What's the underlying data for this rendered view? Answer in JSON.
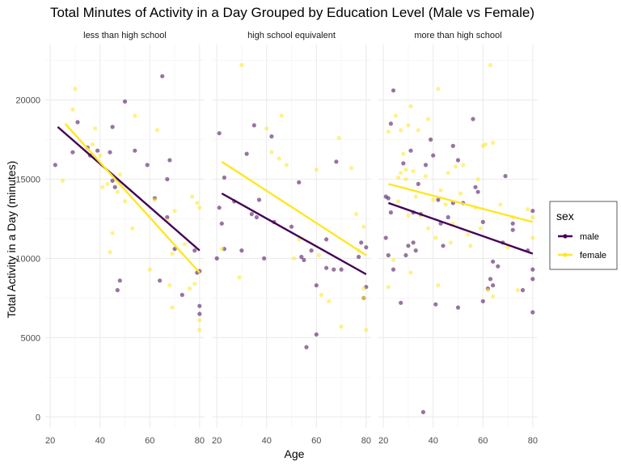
{
  "chart_data": {
    "type": "scatter",
    "title": "Total Minutes of Activity in a Day Grouped by Education Level (Male vs Female)",
    "xlabel": "Age",
    "ylabel": "Total Activity in a Day (minutes)",
    "xlim": [
      18,
      82
    ],
    "ylim": [
      -700,
      23500
    ],
    "x_ticks": [
      20,
      40,
      60,
      80
    ],
    "y_ticks": [
      0,
      5000,
      10000,
      15000,
      20000
    ],
    "grid": true,
    "legend": {
      "title": "sex",
      "position": "right",
      "entries": [
        {
          "label": "male",
          "color": "#440154"
        },
        {
          "label": "female",
          "color": "#FDE725"
        }
      ]
    },
    "panels": [
      {
        "label": "less than high school",
        "series": [
          {
            "name": "male",
            "color": "#440154",
            "trend": [
              [
                23,
                18300
              ],
              [
                80,
                10500
              ]
            ],
            "points": [
              [
                22,
                15900
              ],
              [
                29,
                16700
              ],
              [
                31,
                18600
              ],
              [
                35,
                17000
              ],
              [
                36,
                16500
              ],
              [
                39,
                16800
              ],
              [
                44,
                16700
              ],
              [
                45,
                14900
              ],
              [
                46,
                14500
              ],
              [
                45,
                18300
              ],
              [
                47,
                8000
              ],
              [
                48,
                8600
              ],
              [
                50,
                19900
              ],
              [
                54,
                16800
              ],
              [
                59,
                15900
              ],
              [
                62,
                13800
              ],
              [
                64,
                8600
              ],
              [
                65,
                21500
              ],
              [
                67,
                12600
              ],
              [
                68,
                16200
              ],
              [
                67,
                15000
              ],
              [
                70,
                10600
              ],
              [
                73,
                7700
              ],
              [
                78,
                10500
              ],
              [
                79,
                9100
              ],
              [
                80,
                9200
              ],
              [
                80,
                7000
              ],
              [
                80,
                6500
              ]
            ]
          },
          {
            "name": "female",
            "color": "#FDE725",
            "trend": [
              [
                26,
                18500
              ],
              [
                80,
                9100
              ]
            ],
            "points": [
              [
                25,
                14900
              ],
              [
                29,
                19400
              ],
              [
                30,
                20700
              ],
              [
                37,
                17200
              ],
              [
                38,
                18200
              ],
              [
                40,
                16500
              ],
              [
                41,
                14500
              ],
              [
                43,
                14700
              ],
              [
                44,
                10400
              ],
              [
                45,
                11600
              ],
              [
                47,
                14200
              ],
              [
                48,
                15300
              ],
              [
                50,
                13600
              ],
              [
                53,
                11900
              ],
              [
                54,
                19000
              ],
              [
                60,
                9300
              ],
              [
                62,
                13700
              ],
              [
                63,
                18100
              ],
              [
                67,
                12400
              ],
              [
                68,
                8300
              ],
              [
                69,
                6900
              ],
              [
                69,
                10300
              ],
              [
                70,
                13000
              ],
              [
                74,
                10900
              ],
              [
                76,
                8100
              ],
              [
                77,
                13900
              ],
              [
                78,
                8400
              ],
              [
                79,
                13500
              ],
              [
                80,
                6100
              ],
              [
                80,
                5500
              ],
              [
                80,
                13200
              ]
            ]
          }
        ]
      },
      {
        "label": "high school equivalent",
        "series": [
          {
            "name": "male",
            "color": "#440154",
            "trend": [
              [
                22,
                14100
              ],
              [
                80,
                9000
              ]
            ],
            "points": [
              [
                20,
                10000
              ],
              [
                21,
                17900
              ],
              [
                21,
                13200
              ],
              [
                22,
                12200
              ],
              [
                23,
                15100
              ],
              [
                23,
                10600
              ],
              [
                27,
                13600
              ],
              [
                30,
                10500
              ],
              [
                32,
                16600
              ],
              [
                34,
                12800
              ],
              [
                35,
                18400
              ],
              [
                36,
                12600
              ],
              [
                37,
                13700
              ],
              [
                39,
                10000
              ],
              [
                42,
                17700
              ],
              [
                43,
                12300
              ],
              [
                50,
                12000
              ],
              [
                53,
                14800
              ],
              [
                54,
                10100
              ],
              [
                55,
                9900
              ],
              [
                56,
                4400
              ],
              [
                58,
                10500
              ],
              [
                60,
                5200
              ],
              [
                60,
                8300
              ],
              [
                64,
                9400
              ],
              [
                64,
                11200
              ],
              [
                67,
                9300
              ],
              [
                68,
                16100
              ],
              [
                70,
                9300
              ],
              [
                77,
                10100
              ],
              [
                78,
                11000
              ],
              [
                79,
                7500
              ],
              [
                80,
                8200
              ],
              [
                80,
                10700
              ]
            ]
          },
          {
            "name": "female",
            "color": "#FDE725",
            "trend": [
              [
                22,
                16100
              ],
              [
                80,
                10200
              ]
            ],
            "points": [
              [
                22,
                10600
              ],
              [
                29,
                8800
              ],
              [
                30,
                22200
              ],
              [
                40,
                18200
              ],
              [
                42,
                16700
              ],
              [
                45,
                16300
              ],
              [
                46,
                19000
              ],
              [
                48,
                15900
              ],
              [
                51,
                10000
              ],
              [
                53,
                11200
              ],
              [
                60,
                15600
              ],
              [
                61,
                10200
              ],
              [
                62,
                7700
              ],
              [
                65,
                7300
              ],
              [
                69,
                17600
              ],
              [
                70,
                5700
              ],
              [
                74,
                15700
              ],
              [
                76,
                12800
              ],
              [
                77,
                10500
              ],
              [
                79,
                12000
              ],
              [
                79,
                7500
              ],
              [
                80,
                5500
              ],
              [
                79,
                8100
              ]
            ]
          }
        ]
      },
      {
        "label": "more than high school",
        "series": [
          {
            "name": "male",
            "color": "#440154",
            "trend": [
              [
                22,
                13500
              ],
              [
                80,
                10300
              ]
            ],
            "points": [
              [
                21,
                11300
              ],
              [
                21,
                13900
              ],
              [
                22,
                13800
              ],
              [
                22,
                10200
              ],
              [
                23,
                18500
              ],
              [
                23,
                12900
              ],
              [
                24,
                20600
              ],
              [
                24,
                9300
              ],
              [
                27,
                7200
              ],
              [
                28,
                16000
              ],
              [
                29,
                10200
              ],
              [
                30,
                10800
              ],
              [
                31,
                16800
              ],
              [
                32,
                12900
              ],
              [
                32,
                11000
              ],
              [
                33,
                10500
              ],
              [
                34,
                14700
              ],
              [
                35,
                12800
              ],
              [
                36,
                300
              ],
              [
                37,
                15900
              ],
              [
                39,
                17500
              ],
              [
                40,
                16500
              ],
              [
                41,
                7100
              ],
              [
                42,
                13700
              ],
              [
                43,
                12200
              ],
              [
                44,
                10800
              ],
              [
                46,
                12600
              ],
              [
                48,
                13500
              ],
              [
                48,
                17100
              ],
              [
                50,
                6900
              ],
              [
                50,
                16200
              ],
              [
                52,
                13500
              ],
              [
                56,
                18800
              ],
              [
                57,
                14500
              ],
              [
                58,
                14200
              ],
              [
                60,
                12300
              ],
              [
                60,
                7300
              ],
              [
                62,
                8100
              ],
              [
                63,
                8700
              ],
              [
                64,
                9800
              ],
              [
                64,
                8300
              ],
              [
                66,
                9500
              ],
              [
                68,
                11000
              ],
              [
                69,
                15200
              ],
              [
                72,
                11800
              ],
              [
                72,
                12200
              ],
              [
                76,
                8000
              ],
              [
                78,
                10500
              ],
              [
                80,
                13000
              ],
              [
                80,
                9300
              ],
              [
                80,
                8700
              ],
              [
                80,
                6600
              ]
            ]
          },
          {
            "name": "female",
            "color": "#FDE725",
            "trend": [
              [
                22,
                14700
              ],
              [
                80,
                12300
              ]
            ],
            "points": [
              [
                22,
                8200
              ],
              [
                22,
                18000
              ],
              [
                24,
                9900
              ],
              [
                25,
                19000
              ],
              [
                26,
                15100
              ],
              [
                26,
                13600
              ],
              [
                27,
                18100
              ],
              [
                27,
                15400
              ],
              [
                28,
                16600
              ],
              [
                29,
                15000
              ],
              [
                29,
                15600
              ],
              [
                30,
                18400
              ],
              [
                30,
                12700
              ],
              [
                31,
                19600
              ],
              [
                31,
                9100
              ],
              [
                32,
                15500
              ],
              [
                33,
                13900
              ],
              [
                34,
                18100
              ],
              [
                35,
                12700
              ],
              [
                37,
                15200
              ],
              [
                38,
                18800
              ],
              [
                38,
                11900
              ],
              [
                40,
                13700
              ],
              [
                41,
                11300
              ],
              [
                42,
                20700
              ],
              [
                42,
                8300
              ],
              [
                43,
                14300
              ],
              [
                45,
                13400
              ],
              [
                46,
                15400
              ],
              [
                47,
                11000
              ],
              [
                48,
                12200
              ],
              [
                49,
                15800
              ],
              [
                51,
                14100
              ],
              [
                52,
                15900
              ],
              [
                54,
                11500
              ],
              [
                55,
                10800
              ],
              [
                57,
                13200
              ],
              [
                58,
                15000
              ],
              [
                59,
                11900
              ],
              [
                60,
                17100
              ],
              [
                61,
                17200
              ],
              [
                62,
                8000
              ],
              [
                63,
                22200
              ],
              [
                64,
                7600
              ],
              [
                64,
                17300
              ],
              [
                67,
                13400
              ],
              [
                70,
                10700
              ],
              [
                72,
                12600
              ],
              [
                74,
                8000
              ],
              [
                78,
                13100
              ],
              [
                80,
                11300
              ],
              [
                80,
                12600
              ]
            ]
          }
        ]
      }
    ]
  }
}
